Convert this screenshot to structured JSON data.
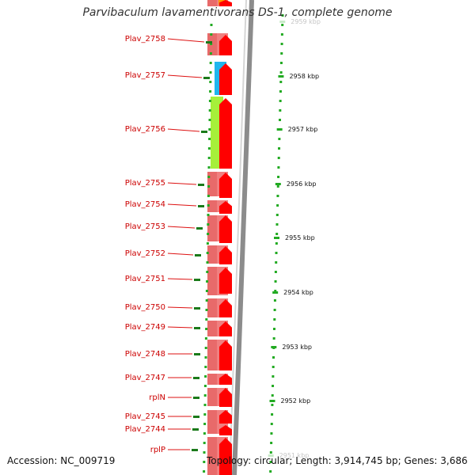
{
  "title": "Parvibaculum lavamentivorans DS-1, complete genome",
  "footer": {
    "accession": "Accession: NC_009719",
    "topology": "Topology: circular; Length: 3,914,745 bp; Genes: 3,686"
  },
  "colors": {
    "label_text": "#cc0000",
    "label_line": "#dd1111",
    "gene_forward": "#ff0000",
    "gene_pink": "#f08080",
    "gene_blue": "#1fb6ee",
    "gene_green": "#a6f03a",
    "gene_orange": "#ff9900",
    "tick_green": "#22aa22",
    "backbone_gray": "#8c8c8c"
  },
  "kbp_ticks": [
    {
      "label": "2959 kbp"
    },
    {
      "label": "2958 kbp"
    },
    {
      "label": "2957 kbp"
    },
    {
      "label": "2956 kbp"
    },
    {
      "label": "2955 kbp"
    },
    {
      "label": "2954 kbp"
    },
    {
      "label": "2953 kbp"
    },
    {
      "label": "2952 kbp"
    },
    {
      "label": "2951 kbp"
    }
  ],
  "gene_labels": [
    "Plav_2758",
    "Plav_2757",
    "Plav_2756",
    "Plav_2755",
    "Plav_2754",
    "Plav_2753",
    "Plav_2752",
    "Plav_2751",
    "Plav_2750",
    "Plav_2749",
    "Plav_2748",
    "Plav_2747",
    "rplN",
    "Plav_2745",
    "Plav_2744",
    "rplP"
  ]
}
